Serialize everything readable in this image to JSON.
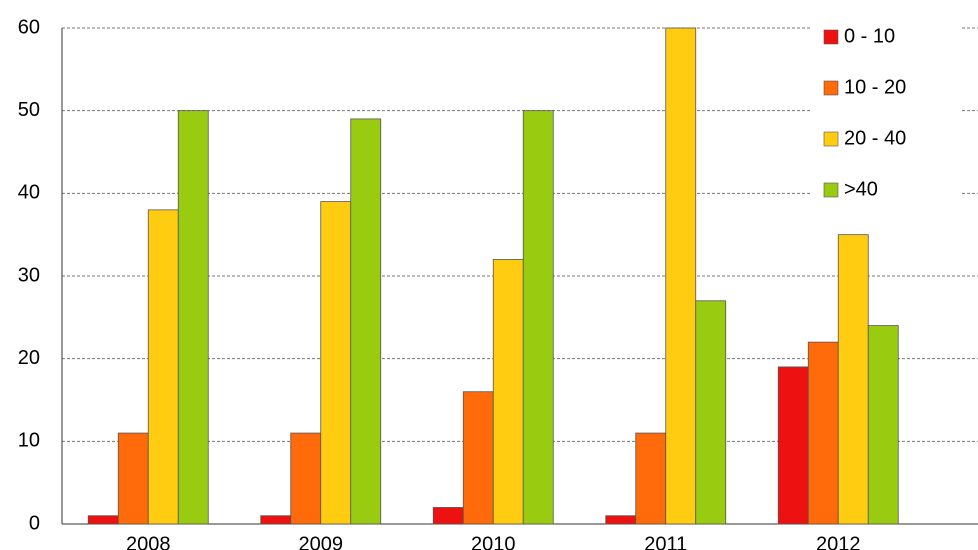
{
  "chart_data": {
    "type": "bar",
    "categories": [
      "2008",
      "2009",
      "2010",
      "2011",
      "2012"
    ],
    "series": [
      {
        "name": "0 - 10",
        "color": "#ee1111",
        "values": [
          1,
          1,
          2,
          1,
          19
        ]
      },
      {
        "name": "10 - 20",
        "color": "#ff6a0a",
        "values": [
          11,
          11,
          16,
          11,
          22
        ]
      },
      {
        "name": "20 - 40",
        "color": "#ffcc11",
        "values": [
          38,
          39,
          32,
          60,
          35
        ]
      },
      {
        "name": ">40",
        "color": "#99cc11",
        "values": [
          50,
          49,
          50,
          27,
          24
        ]
      }
    ],
    "ylim": [
      0,
      60
    ],
    "yticks": [
      0,
      10,
      20,
      30,
      40,
      50,
      60
    ],
    "grid": true,
    "legend": "upper right"
  }
}
